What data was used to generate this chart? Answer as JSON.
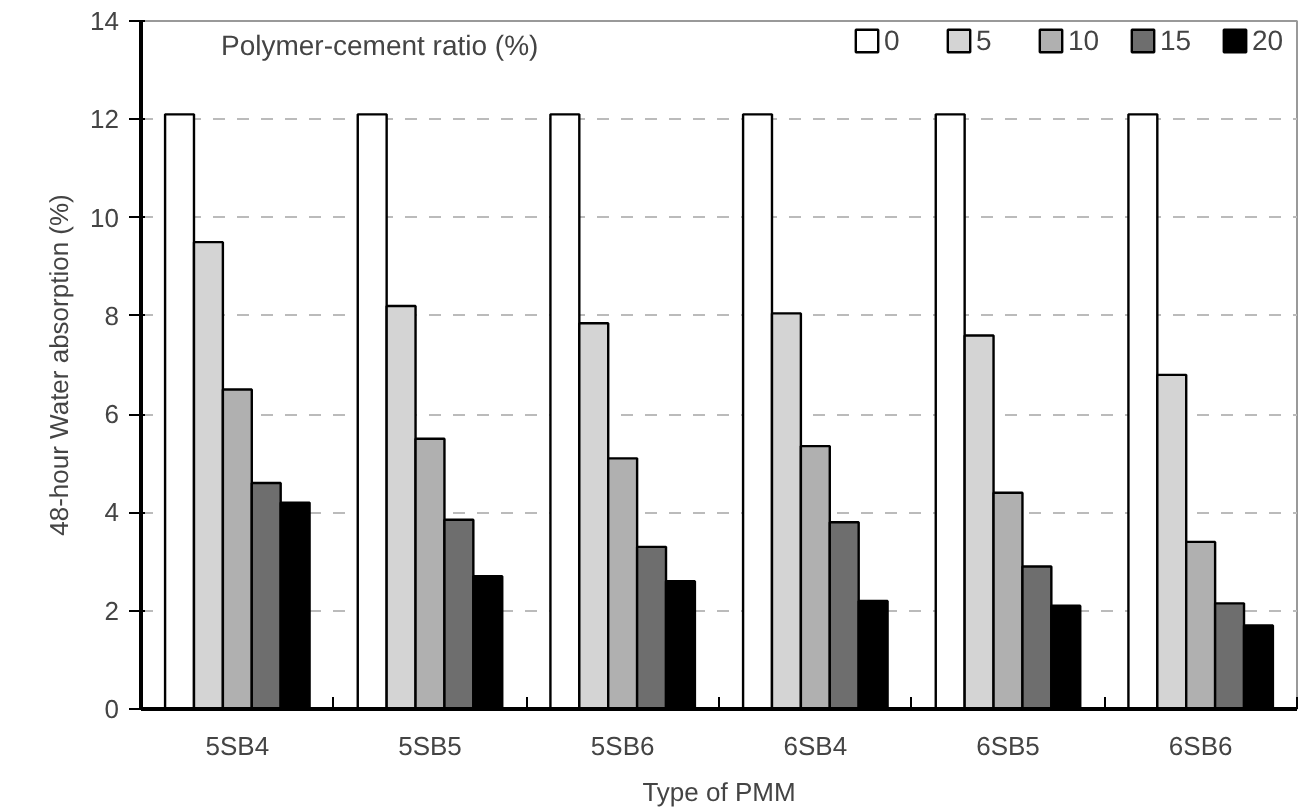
{
  "chart_data": {
    "type": "bar",
    "xlabel": "Type of PMM",
    "ylabel": "48-hour Water absorption (%)",
    "legend_title": "Polymer-cement ratio (%)",
    "categories": [
      "5SB4",
      "5SB5",
      "5SB6",
      "6SB4",
      "6SB5",
      "6SB6"
    ],
    "series": [
      {
        "name": "0",
        "color": "#ffffff",
        "values": [
          12.1,
          12.1,
          12.1,
          12.1,
          12.1,
          12.1
        ]
      },
      {
        "name": "5",
        "color": "#d4d4d4",
        "values": [
          9.5,
          8.2,
          7.85,
          8.05,
          7.6,
          6.8
        ]
      },
      {
        "name": "10",
        "color": "#b0b0b0",
        "values": [
          6.5,
          5.5,
          5.1,
          5.35,
          4.4,
          3.4
        ]
      },
      {
        "name": "15",
        "color": "#6e6e6e",
        "values": [
          4.6,
          3.85,
          3.3,
          3.8,
          2.9,
          2.15
        ]
      },
      {
        "name": "20",
        "color": "#000000",
        "values": [
          4.2,
          2.7,
          2.6,
          2.2,
          2.1,
          1.7
        ]
      }
    ],
    "ylim": [
      0,
      14
    ],
    "yticks": [
      0,
      2,
      4,
      6,
      8,
      10,
      12,
      14
    ],
    "grid": "y",
    "legend": "top"
  }
}
